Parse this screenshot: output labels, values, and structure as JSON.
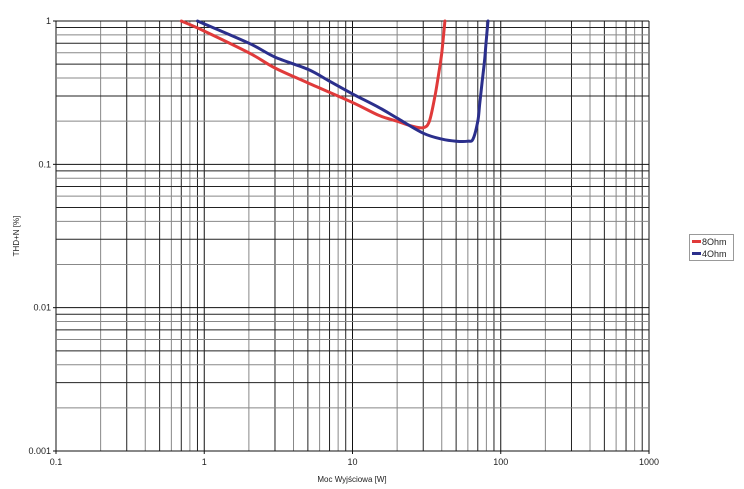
{
  "chart_data": {
    "type": "line",
    "title": "",
    "xlabel": "Moc Wyjściowa [W]",
    "ylabel": "THD+N [%]",
    "xscale": "log",
    "yscale": "log",
    "xlim": [
      0.1,
      1000
    ],
    "ylim": [
      0.001,
      1
    ],
    "x_ticks": [
      "0.1",
      "1",
      "10",
      "100",
      "1000"
    ],
    "y_ticks": [
      "1",
      "0.1",
      "0.01",
      "0.001"
    ],
    "grid": true,
    "legend_position": "right",
    "series": [
      {
        "name": "8Ohm",
        "color": "#e03a3a",
        "points": [
          [
            0.7,
            1.0
          ],
          [
            1,
            0.85
          ],
          [
            2,
            0.6
          ],
          [
            3,
            0.47
          ],
          [
            5,
            0.37
          ],
          [
            10,
            0.27
          ],
          [
            15,
            0.22
          ],
          [
            20,
            0.2
          ],
          [
            25,
            0.185
          ],
          [
            30,
            0.18
          ],
          [
            33,
            0.2
          ],
          [
            36,
            0.3
          ],
          [
            38,
            0.42
          ],
          [
            40,
            0.6
          ],
          [
            42,
            1.0
          ]
        ]
      },
      {
        "name": "4Ohm",
        "color": "#2b2f8c",
        "points": [
          [
            0.9,
            1.0
          ],
          [
            2,
            0.7
          ],
          [
            3,
            0.56
          ],
          [
            5,
            0.46
          ],
          [
            7,
            0.38
          ],
          [
            10,
            0.31
          ],
          [
            15,
            0.25
          ],
          [
            20,
            0.21
          ],
          [
            30,
            0.165
          ],
          [
            40,
            0.15
          ],
          [
            50,
            0.145
          ],
          [
            60,
            0.145
          ],
          [
            65,
            0.15
          ],
          [
            70,
            0.2
          ],
          [
            72,
            0.26
          ],
          [
            75,
            0.38
          ],
          [
            78,
            0.55
          ],
          [
            80,
            0.75
          ],
          [
            82,
            1.0
          ]
        ]
      }
    ]
  },
  "legend": {
    "items": [
      {
        "label": "8Ohm",
        "color": "#e03a3a"
      },
      {
        "label": "4Ohm",
        "color": "#2b2f8c"
      }
    ]
  }
}
